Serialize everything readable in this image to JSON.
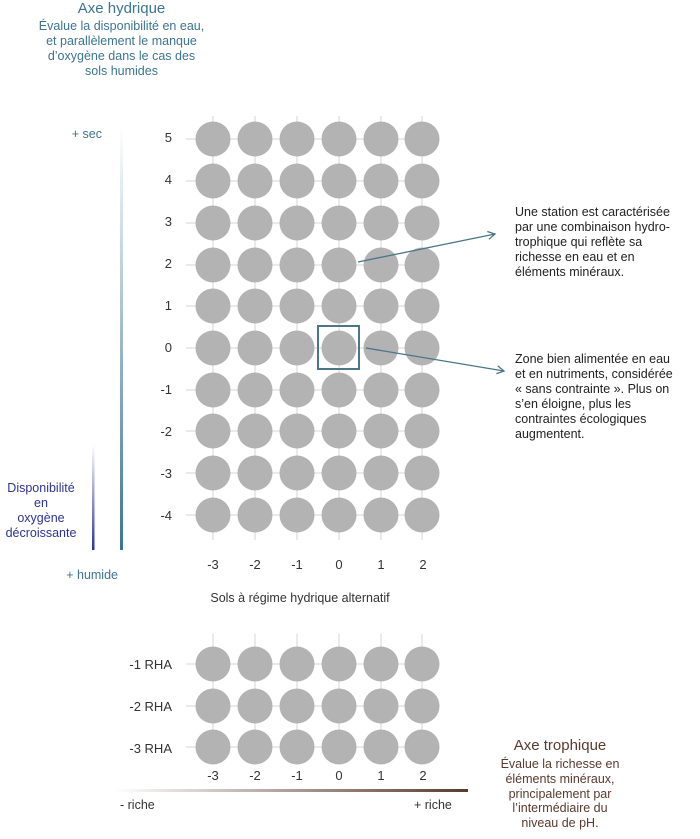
{
  "hydric_axis": {
    "title": "Axe hydrique",
    "description_lines": [
      "Évalue la disponibilité en eau,",
      "et parallèlement le manque",
      "d’oxygène dans le cas des",
      "sols humides"
    ],
    "top_label": "+ sec",
    "bottom_label": "+ humide",
    "oxygen_label_lines": [
      "Disponibilité",
      "en",
      "oxygène",
      "décroissante"
    ],
    "levels": [
      "5",
      "4",
      "3",
      "2",
      "1",
      "0",
      "-1",
      "-2",
      "-3",
      "-4"
    ]
  },
  "trophic_axis": {
    "title": "Axe trophique",
    "description_lines": [
      "Évalue la richesse en",
      "éléments minéraux,",
      "principalement par",
      "l’intermédiaire du",
      "niveau de pH."
    ],
    "left_label": "- riche",
    "right_label": "+ riche",
    "levels": [
      "-3",
      "-2",
      "-1",
      "0",
      "1",
      "2"
    ]
  },
  "rha": {
    "title": "Sols à régime hydrique alternatif",
    "levels": [
      "-1 RHA",
      "-2 RHA",
      "-3 RHA"
    ]
  },
  "annotations": [
    {
      "lines": [
        "Une station est caractérisée",
        "par une combinaison hydro-",
        "trophique qui reflète sa",
        "richesse en eau et en",
        "éléments minéraux."
      ]
    },
    {
      "lines": [
        "Zone bien alimentée en eau",
        "et en nutriments, considérée",
        "« sans contrainte ». Plus on",
        "s’en éloigne, plus les",
        "contraintes écologiques",
        "augmentent."
      ]
    }
  ],
  "highlighted_cell": {
    "trophic": "0",
    "hydric": "0"
  },
  "colors": {
    "dot": "#b3b3b3",
    "hydric": "#3d7590",
    "oxygen": "#2e3590",
    "trophic": "#5a3a2e",
    "highlight": "#4a7688"
  }
}
